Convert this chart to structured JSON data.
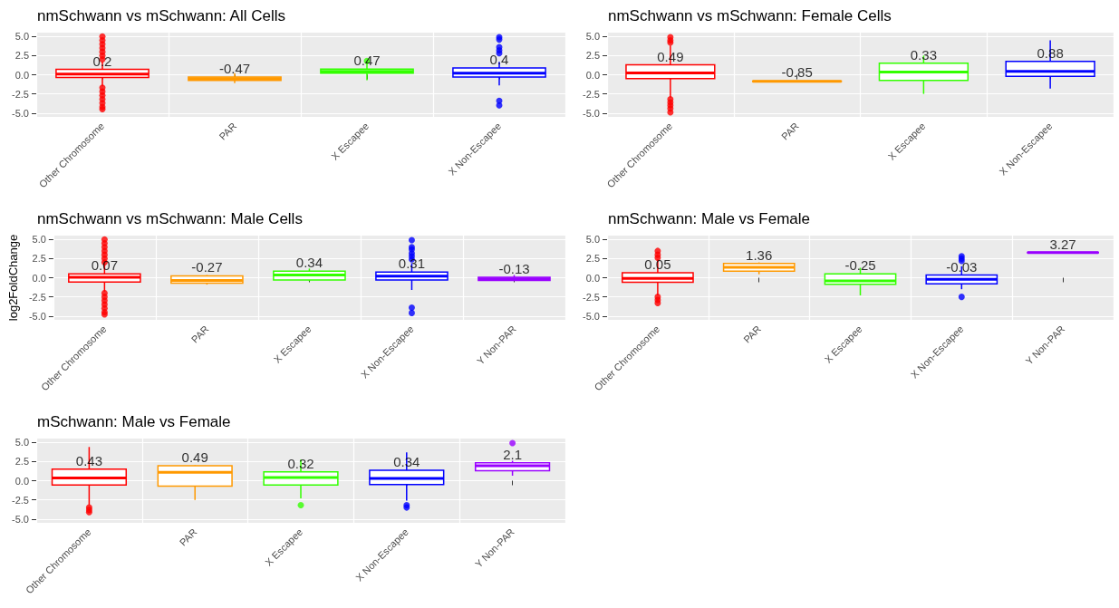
{
  "chart_data": [
    {
      "type": "box",
      "title": "nmSchwann vs mSchwann: All Cells",
      "categories": [
        "Other Chromosome",
        "PAR",
        "X Escapee",
        "X Non-Escapee"
      ],
      "colors": [
        "#ff0000",
        "#ff9900",
        "#33ff00",
        "#0000ff"
      ],
      "boxes": [
        {
          "low": -1.5,
          "q1": -0.35,
          "median": 0.1,
          "q3": 0.7,
          "high": 1.7,
          "outliers": [
            2.0,
            2.5,
            3.0,
            3.5,
            4.0,
            4.5,
            5.0,
            -1.7,
            -2.2,
            -2.7,
            -3.2,
            -3.7,
            -4.2,
            -4.5
          ]
        },
        {
          "low": -1.1,
          "q1": -0.75,
          "median": -0.5,
          "q3": -0.3,
          "high": 0.2
        },
        {
          "low": -0.7,
          "q1": 0.2,
          "median": 0.45,
          "q3": 0.75,
          "high": 1.5,
          "outliers": [
            1.8
          ]
        },
        {
          "low": -1.4,
          "q1": -0.3,
          "median": 0.2,
          "q3": 0.9,
          "high": 1.7,
          "outliers": [
            2.8,
            3.2,
            3.6,
            4.6,
            4.9,
            -3.4,
            -4.0
          ]
        }
      ],
      "annotations": [
        "0.2",
        "-0.47",
        "0.47",
        "0.4"
      ],
      "ylim": [
        -5.5,
        5.5
      ],
      "yticks": [
        {
          "value": -5,
          "label": "-5.0"
        },
        {
          "value": -2.5,
          "label": "-2.5"
        },
        {
          "value": 0,
          "label": "0.0"
        },
        {
          "value": 2.5,
          "label": "2.5"
        },
        {
          "value": 5,
          "label": "5.0"
        }
      ],
      "grid": true
    },
    {
      "type": "box",
      "title": "nmSchwann vs mSchwann: Female Cells",
      "categories": [
        "Other Chromosome",
        "PAR",
        "X Escapee",
        "X Non-Escapee"
      ],
      "colors": [
        "#ff0000",
        "#ff9900",
        "#33ff00",
        "#0000ff"
      ],
      "boxes": [
        {
          "low": -3.0,
          "q1": -0.5,
          "median": 0.25,
          "q3": 1.3,
          "high": 3.8,
          "outliers": [
            4.2,
            4.5,
            4.9,
            -3.2,
            -3.6,
            -4.0,
            -4.4,
            -4.9
          ]
        },
        {
          "low": -0.9,
          "q1": -0.88,
          "median": -0.85,
          "q3": -0.82,
          "high": -0.8
        },
        {
          "low": -2.5,
          "q1": -0.75,
          "median": 0.35,
          "q3": 1.5,
          "high": 2.5
        },
        {
          "low": -1.8,
          "q1": -0.2,
          "median": 0.45,
          "q3": 1.75,
          "high": 4.5
        }
      ],
      "annotations": [
        "0.49",
        "-0.85",
        "0.33",
        "0.88"
      ],
      "ylim": [
        -5.5,
        5.5
      ],
      "yticks": [
        {
          "value": -5,
          "label": "-5.0"
        },
        {
          "value": -2.5,
          "label": "-2.5"
        },
        {
          "value": 0,
          "label": "0.0"
        },
        {
          "value": 2.5,
          "label": "2.5"
        },
        {
          "value": 5,
          "label": "5.0"
        }
      ],
      "grid": true
    },
    {
      "type": "box",
      "title": "nmSchwann vs mSchwann: Male Cells",
      "ylabel": "log2FoldChange",
      "categories": [
        "Other Chromosome",
        "PAR",
        "X Escapee",
        "X Non-Escapee",
        "Y Non-PAR"
      ],
      "colors": [
        "#ff0000",
        "#ff9900",
        "#33ff00",
        "#0000ff",
        "#9900ff"
      ],
      "boxes": [
        {
          "low": -1.8,
          "q1": -0.55,
          "median": 0.05,
          "q3": 0.5,
          "high": 1.9,
          "outliers": [
            2.0,
            2.5,
            3.0,
            3.5,
            4.0,
            4.5,
            5.0,
            -2.0,
            -2.5,
            -3.0,
            -3.5,
            -4.0,
            -4.5,
            -4.8
          ]
        },
        {
          "low": -0.9,
          "q1": -0.7,
          "median": -0.35,
          "q3": 0.25,
          "high": 0.35
        },
        {
          "low": -0.45,
          "q1": -0.3,
          "median": 0.35,
          "q3": 0.85,
          "high": 1.2
        },
        {
          "low": -1.6,
          "q1": -0.3,
          "median": 0.2,
          "q3": 0.75,
          "high": 1.9,
          "outliers": [
            2.4,
            2.8,
            3.2,
            3.7,
            4.0,
            4.9,
            -3.9,
            -4.6
          ]
        },
        {
          "low": -0.4,
          "q1": -0.35,
          "median": -0.15,
          "q3": 0.05,
          "high": 0.35
        }
      ],
      "annotations": [
        "0.07",
        "-0.27",
        "0.34",
        "0.31",
        "-0.13"
      ],
      "ylim": [
        -5.5,
        5.5
      ],
      "yticks": [
        {
          "value": -5,
          "label": "-5.0"
        },
        {
          "value": -2.5,
          "label": "-2.5"
        },
        {
          "value": 0,
          "label": "0.0"
        },
        {
          "value": 2.5,
          "label": "2.5"
        },
        {
          "value": 5,
          "label": "5.0"
        }
      ],
      "grid": true
    },
    {
      "type": "box",
      "title": "nmSchwann: Male vs Female",
      "categories": [
        "Other Chromosome",
        "PAR",
        "X Escapee",
        "X Non-Escapee",
        "Y Non-PAR"
      ],
      "colors": [
        "#ff0000",
        "#ff9900",
        "#33ff00",
        "#0000ff",
        "#9900ff"
      ],
      "boxes": [
        {
          "low": -2.3,
          "q1": -0.6,
          "median": -0.1,
          "q3": 0.65,
          "high": 2.4,
          "outliers": [
            2.6,
            3.0,
            3.5,
            -2.5,
            -2.9,
            -3.3
          ]
        },
        {
          "low": 0.45,
          "q1": 0.85,
          "median": 1.35,
          "q3": 1.85,
          "high": 2.0
        },
        {
          "low": -2.3,
          "q1": -0.85,
          "median": -0.4,
          "q3": 0.5,
          "high": 1.3
        },
        {
          "low": -1.5,
          "q1": -0.8,
          "median": -0.2,
          "q3": 0.35,
          "high": 1.5,
          "outliers": [
            2.2,
            2.5,
            2.8,
            -2.5
          ]
        },
        {
          "low": 3.2,
          "q1": 3.24,
          "median": 3.27,
          "q3": 3.3,
          "high": 3.32
        }
      ],
      "annotations": [
        "0.05",
        "1.36",
        "-0.25",
        "-0.03",
        "3.27"
      ],
      "ylim": [
        -5.5,
        5.5
      ],
      "yticks": [
        {
          "value": -5,
          "label": "-5.0"
        },
        {
          "value": -2.5,
          "label": "-2.5"
        },
        {
          "value": 0,
          "label": "0.0"
        },
        {
          "value": 2.5,
          "label": "2.5"
        },
        {
          "value": 5,
          "label": "5.0"
        }
      ],
      "grid": true
    },
    {
      "type": "box",
      "title": "mSchwann: Male vs Female",
      "categories": [
        "Other Chromosome",
        "PAR",
        "X Escapee",
        "X Non-Escapee",
        "Y Non-PAR"
      ],
      "colors": [
        "#ff0000",
        "#ff9900",
        "#33ff00",
        "#0000ff",
        "#9900ff"
      ],
      "boxes": [
        {
          "low": -3.2,
          "q1": -0.55,
          "median": 0.35,
          "q3": 1.5,
          "high": 4.4,
          "outliers": [
            -3.5,
            -3.8,
            -4.1
          ]
        },
        {
          "low": -2.5,
          "q1": -0.7,
          "median": 1.1,
          "q3": 1.95,
          "high": 2.0
        },
        {
          "low": -2.3,
          "q1": -0.55,
          "median": 0.4,
          "q3": 1.15,
          "high": 2.75,
          "outliers": [
            -3.2
          ]
        },
        {
          "low": -2.6,
          "q1": -0.5,
          "median": 0.3,
          "q3": 1.35,
          "high": 3.7,
          "outliers": [
            -3.2,
            -3.5
          ]
        },
        {
          "low": 0.65,
          "q1": 1.3,
          "median": 1.95,
          "q3": 2.35,
          "high": 2.6,
          "outliers": [
            4.9
          ]
        }
      ],
      "annotations": [
        "0.43",
        "0.49",
        "0.32",
        "0.34",
        "2.1"
      ],
      "ylim": [
        -5.5,
        5.5
      ],
      "yticks": [
        {
          "value": -5,
          "label": "-5.0"
        },
        {
          "value": -2.5,
          "label": "-2.5"
        },
        {
          "value": 0,
          "label": "0.0"
        },
        {
          "value": 2.5,
          "label": "2.5"
        },
        {
          "value": 5,
          "label": "5.0"
        }
      ],
      "grid": true
    }
  ]
}
